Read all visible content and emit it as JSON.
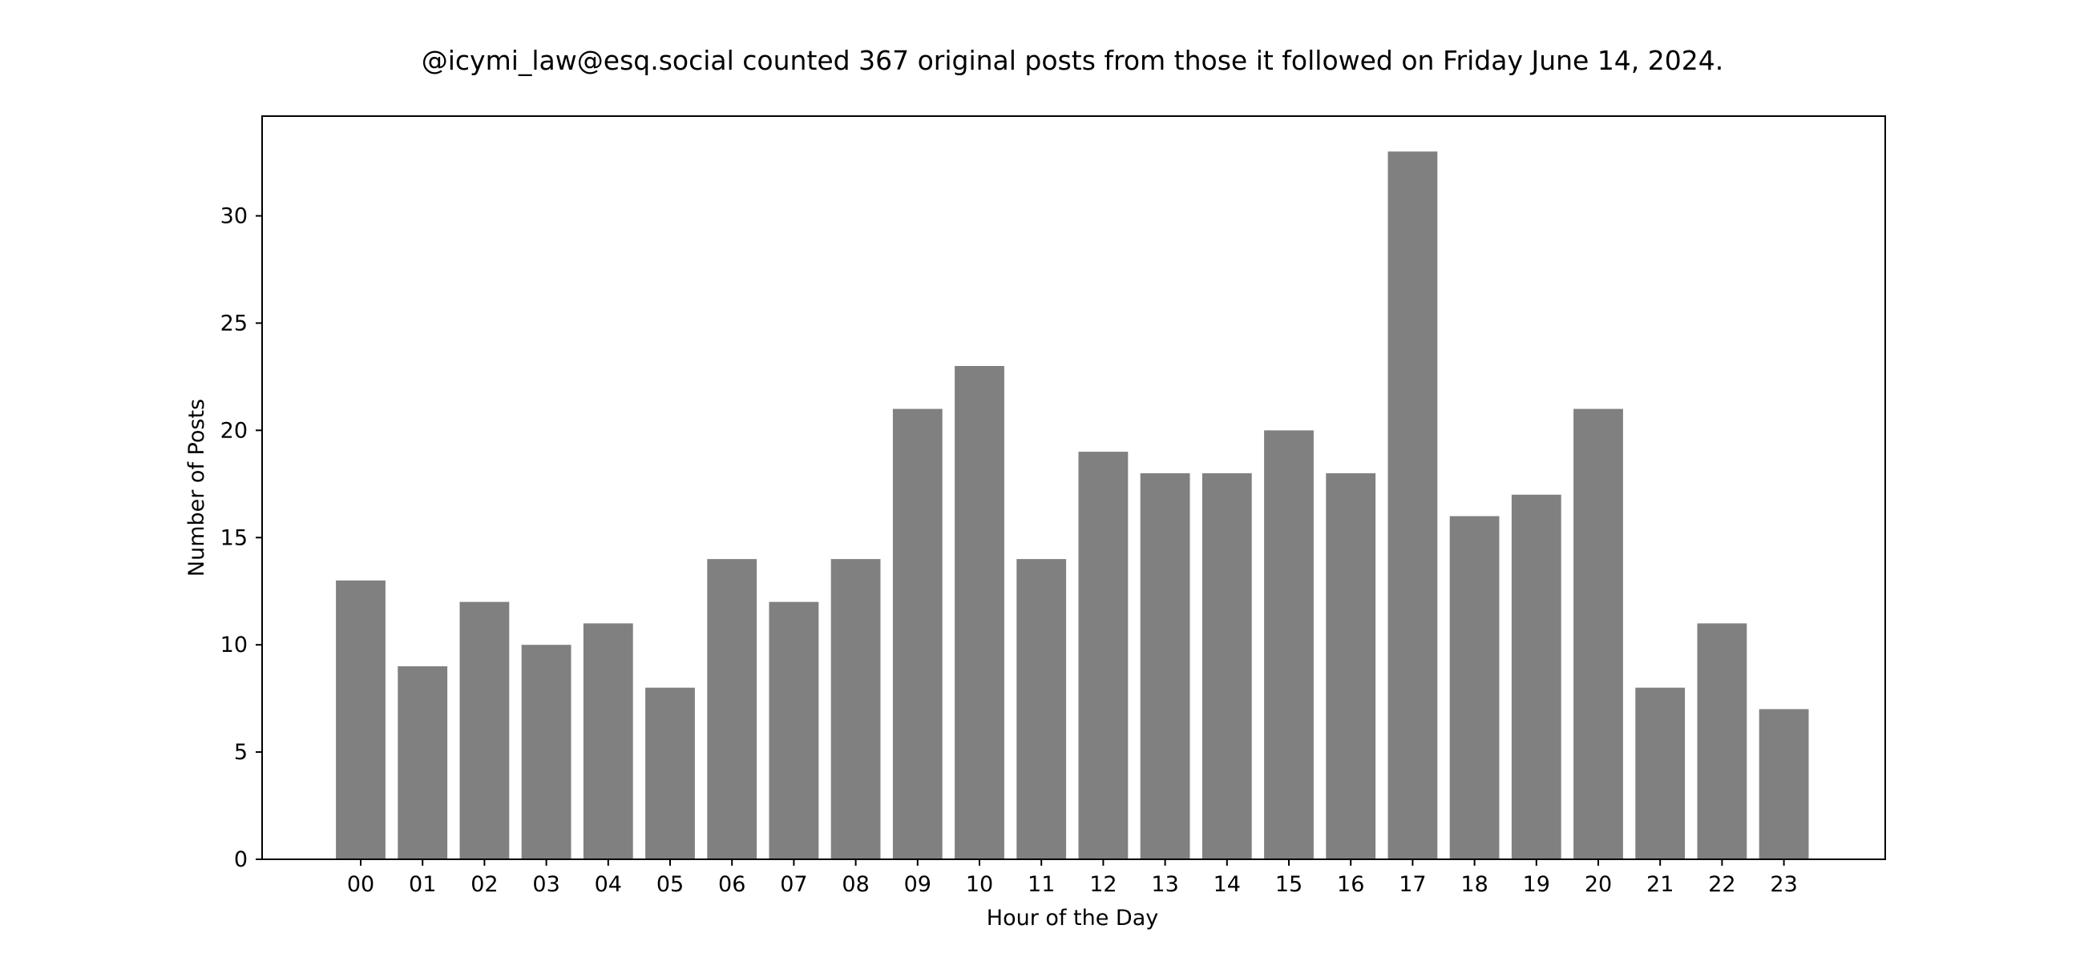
{
  "chart_data": {
    "type": "bar",
    "title": "@icymi_law@esq.social counted 367 original posts from those it followed on Friday June 14, 2024.",
    "xlabel": "Hour of the Day",
    "ylabel": "Number of Posts",
    "categories": [
      "00",
      "01",
      "02",
      "03",
      "04",
      "05",
      "06",
      "07",
      "08",
      "09",
      "10",
      "11",
      "12",
      "13",
      "14",
      "15",
      "16",
      "17",
      "18",
      "19",
      "20",
      "21",
      "22",
      "23"
    ],
    "values": [
      13,
      9,
      12,
      10,
      11,
      8,
      14,
      12,
      14,
      21,
      23,
      14,
      19,
      18,
      18,
      20,
      18,
      33,
      16,
      17,
      21,
      8,
      11,
      7
    ],
    "ylim": [
      0,
      34.65
    ],
    "yticks": [
      0,
      5,
      10,
      15,
      20,
      25,
      30
    ],
    "grid": false,
    "bar_color": "#808080"
  }
}
